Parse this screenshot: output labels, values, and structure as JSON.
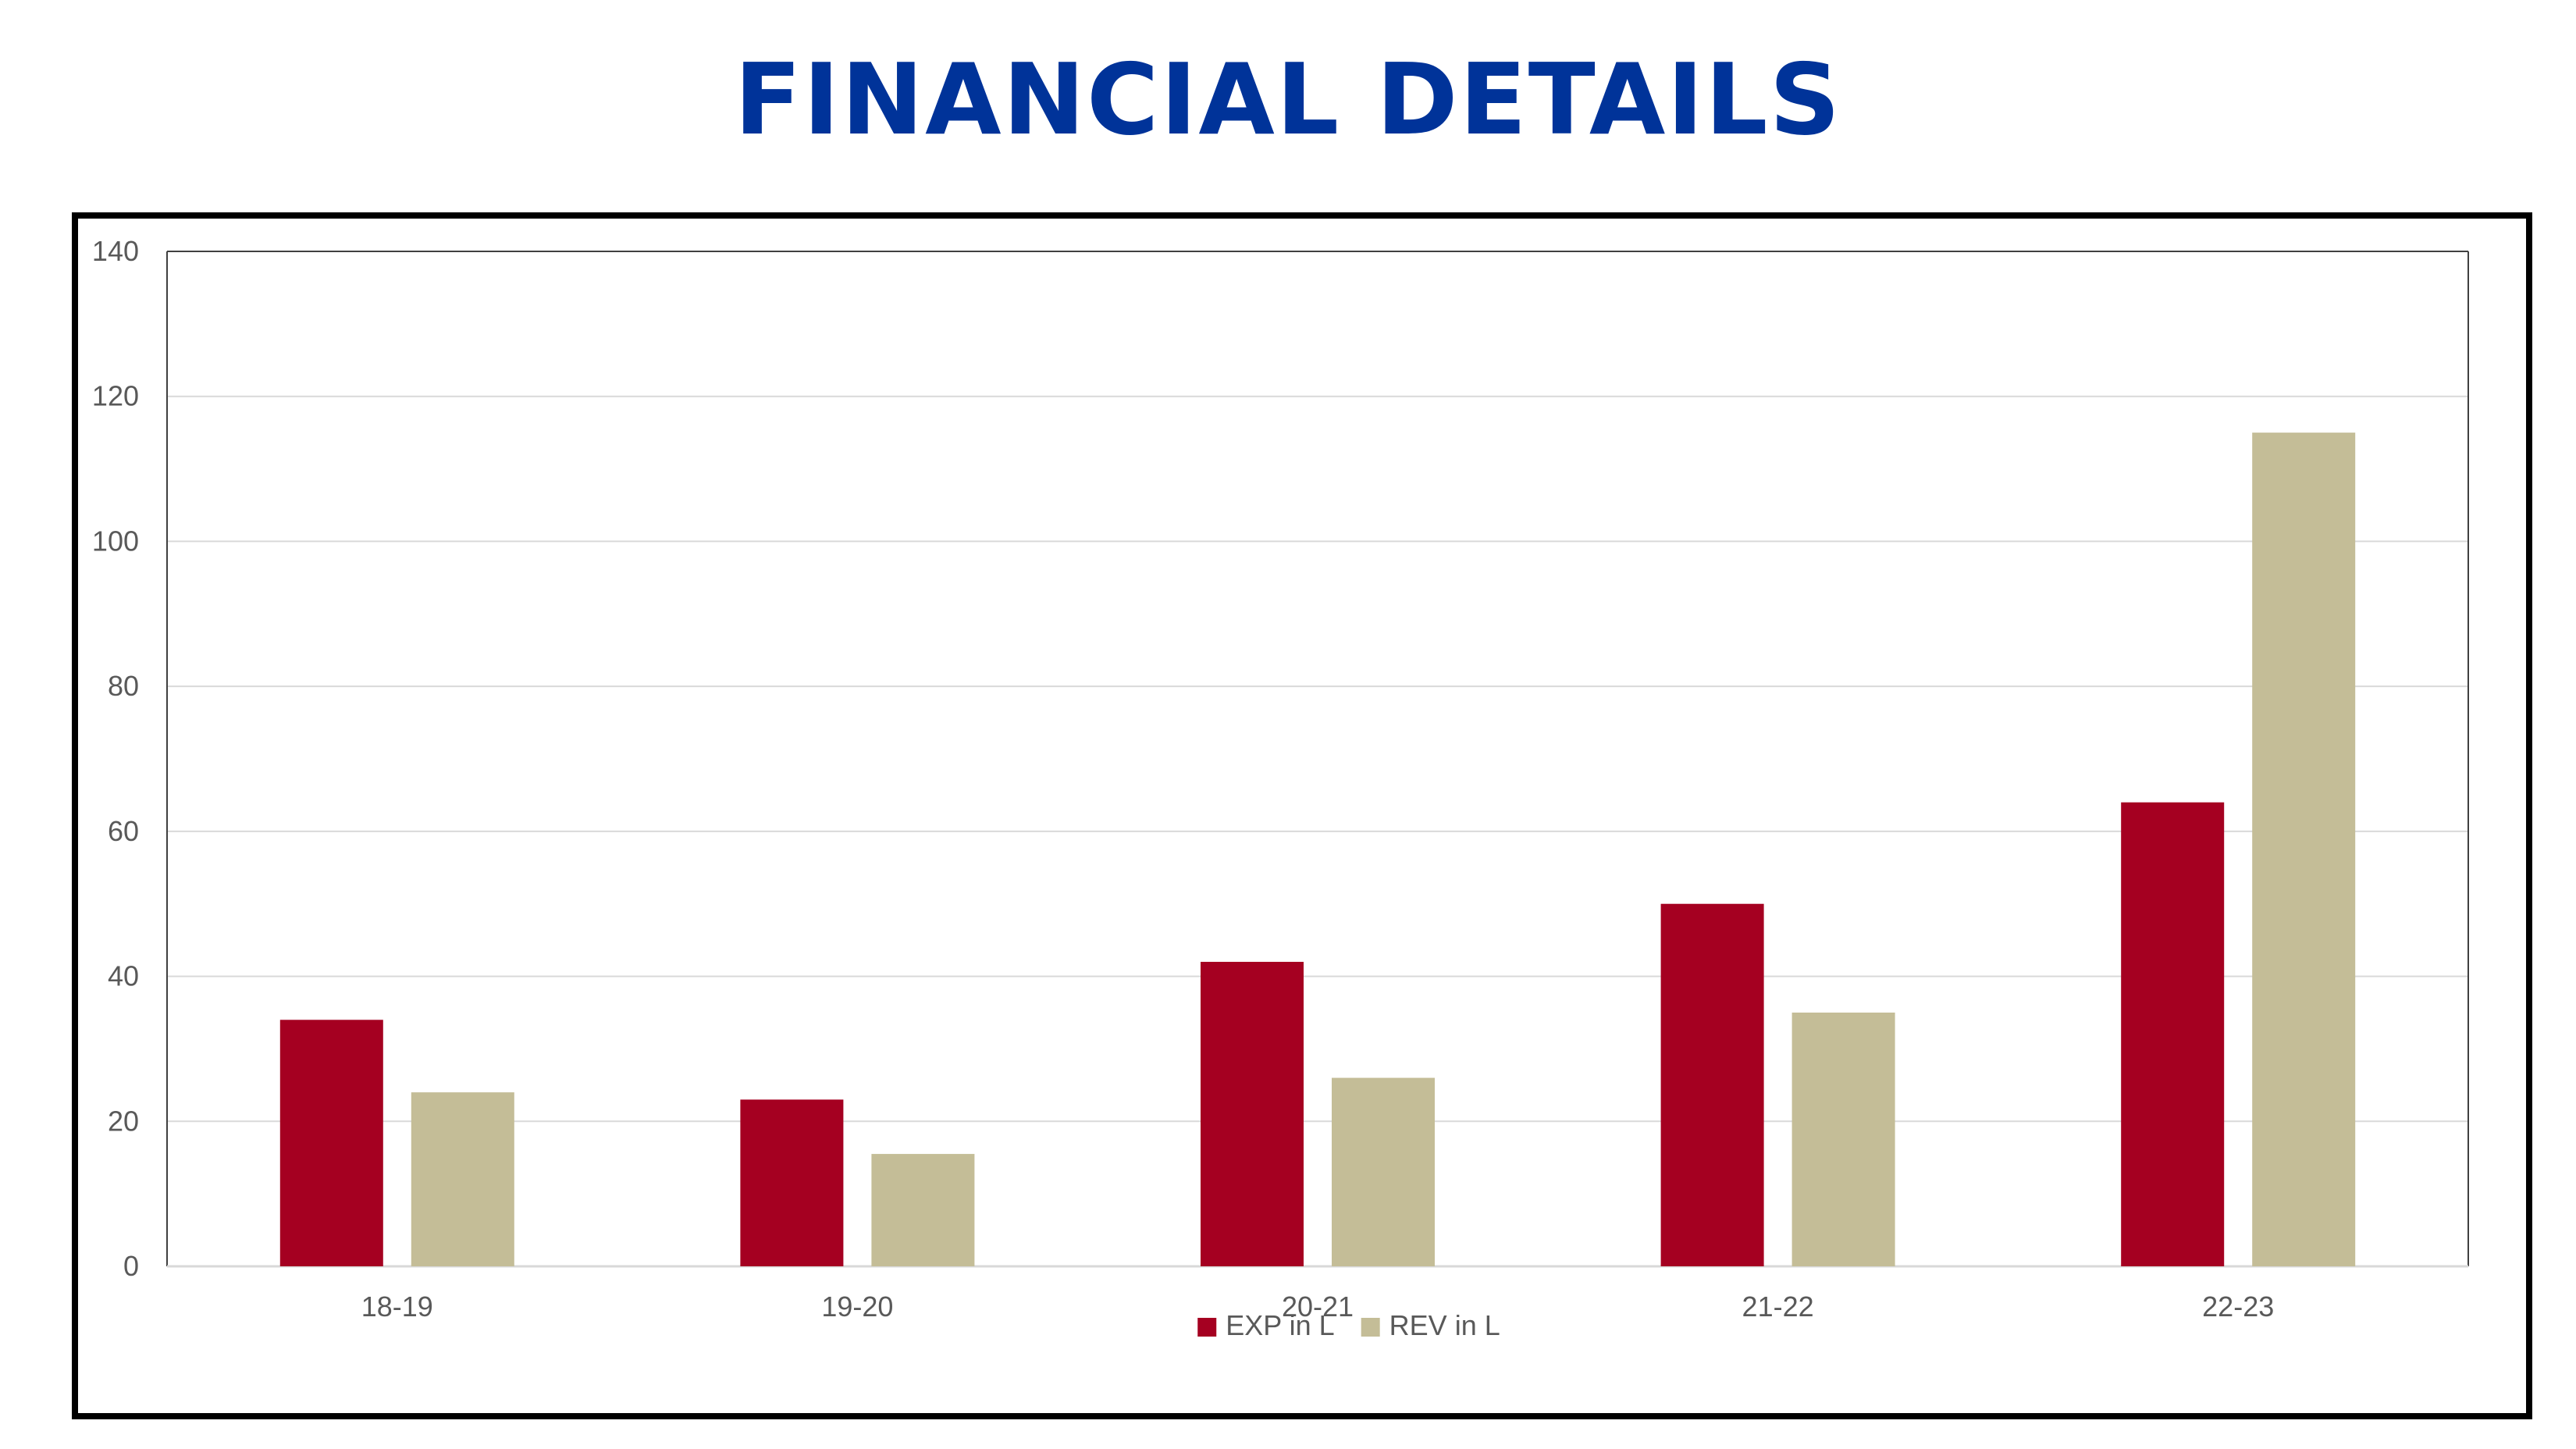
{
  "page": {
    "title": "FINANCIAL DETAILS",
    "title_color": "#003399"
  },
  "chart_data": {
    "type": "bar",
    "title": "",
    "xlabel": "",
    "ylabel": "",
    "categories": [
      "18-19",
      "19-20",
      "20-21",
      "21-22",
      "22-23"
    ],
    "series": [
      {
        "name": "EXP in L",
        "color": "#A50021",
        "values": [
          34,
          23,
          42,
          50,
          64
        ]
      },
      {
        "name": "REV in L",
        "color": "#C4BD97",
        "values": [
          24,
          15.5,
          26,
          35,
          115
        ]
      }
    ],
    "ylim": [
      0,
      140
    ],
    "yticks": [
      0,
      20,
      40,
      60,
      80,
      100,
      120,
      140
    ],
    "grid": true,
    "legend_position": "bottom"
  }
}
